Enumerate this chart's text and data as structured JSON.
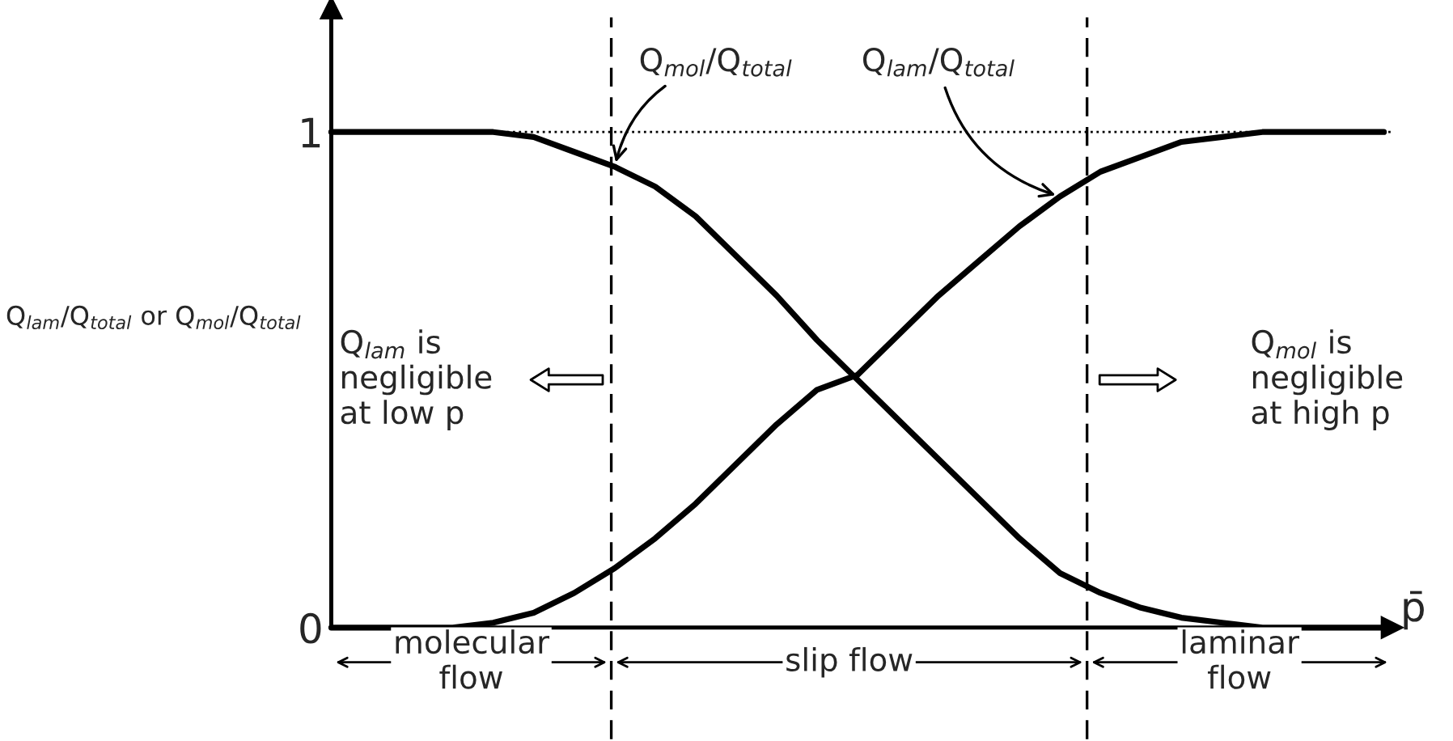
{
  "chart_data": {
    "type": "line",
    "ylabel": "Q$_{lam}$/Q$_{total}$ or Q$_{mol}$/Q$_{total}$",
    "xlabel": "p̄",
    "categories": [
      null,
      null,
      null,
      null,
      null,
      null,
      null,
      null,
      null,
      null,
      null,
      null,
      null,
      null,
      null,
      null,
      null,
      null,
      null,
      null,
      null,
      null,
      null,
      null,
      null,
      null,
      null
    ],
    "series": [
      {
        "name": "Q$_{mol}$/Q$_{total}$",
        "color": "#000000",
        "values": [
          1,
          1,
          1,
          1,
          1,
          0.99,
          0.96,
          0.93,
          0.89,
          0.83,
          0.75,
          0.67,
          0.58,
          0.5,
          0.42,
          0.34,
          0.26,
          0.18,
          0.11,
          0.07,
          0.04,
          0.02,
          0.01,
          0,
          0,
          0,
          0
        ]
      },
      {
        "name": "Q$_{lam}$/Q$_{total}$",
        "color": "#000000",
        "values": [
          0,
          0,
          0,
          0,
          0.01,
          0.03,
          0.07,
          0.12,
          0.18,
          0.25,
          0.33,
          0.41,
          0.48,
          0.51,
          0.59,
          0.67,
          0.74,
          0.81,
          0.87,
          0.92,
          0.95,
          0.98,
          0.99,
          1,
          1,
          1,
          1
        ]
      }
    ],
    "ylim": [
      0,
      1.25
    ],
    "yticks": [
      0,
      1
    ],
    "tick_labels": "y",
    "grid": false,
    "marker": "none",
    "line_style": "solid",
    "ref_lines": [
      {
        "axis": "y",
        "value": 1,
        "line_style": "dotted",
        "color": "#000000"
      }
    ],
    "annotations": [
      "Q$_{lam}$ is\nnegligible\nat low p",
      "Q$_{mol}$ is\nnegligible\nat high p",
      "molecular\nflow",
      "slip flow",
      "laminar\nflow"
    ]
  }
}
